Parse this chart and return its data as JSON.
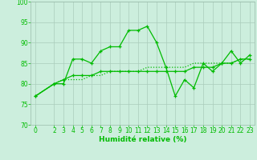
{
  "xlabel": "Humidité relative (%)",
  "background_color": "#cceedd",
  "grid_color": "#aaccbb",
  "line_color": "#00bb00",
  "xlim": [
    -0.5,
    23.5
  ],
  "ylim": [
    70,
    100
  ],
  "yticks": [
    70,
    75,
    80,
    85,
    90,
    95,
    100
  ],
  "xticks": [
    0,
    2,
    3,
    4,
    5,
    6,
    7,
    8,
    9,
    10,
    11,
    12,
    13,
    14,
    15,
    16,
    17,
    18,
    19,
    20,
    21,
    22,
    23
  ],
  "series1_x": [
    0,
    2,
    3,
    4,
    5,
    6,
    7,
    8,
    9,
    10,
    11,
    12,
    13,
    14,
    15,
    16,
    17,
    18,
    19,
    20,
    21,
    22,
    23
  ],
  "series1_y": [
    77,
    80,
    80,
    86,
    86,
    85,
    88,
    89,
    89,
    93,
    93,
    94,
    90,
    84,
    77,
    81,
    79,
    85,
    83,
    85,
    88,
    85,
    87
  ],
  "series2_x": [
    0,
    2,
    3,
    4,
    5,
    6,
    7,
    8,
    9,
    10,
    11,
    12,
    13,
    14,
    15,
    16,
    17,
    18,
    19,
    20,
    21,
    22,
    23
  ],
  "series2_y": [
    77,
    80,
    81,
    82,
    82,
    82,
    83,
    83,
    83,
    83,
    83,
    83,
    83,
    83,
    83,
    83,
    84,
    84,
    84,
    85,
    85,
    86,
    86
  ],
  "series3_x": [
    0,
    2,
    3,
    4,
    5,
    6,
    7,
    8,
    9,
    10,
    11,
    12,
    13,
    14,
    15,
    16,
    17,
    18,
    19,
    20,
    21,
    22,
    23
  ],
  "series3_y": [
    77,
    80,
    81,
    81,
    81,
    82,
    82,
    83,
    83,
    83,
    83,
    84,
    84,
    84,
    84,
    84,
    85,
    85,
    85,
    85,
    85,
    86,
    86
  ],
  "tick_fontsize": 5.5,
  "xlabel_fontsize": 6.5
}
